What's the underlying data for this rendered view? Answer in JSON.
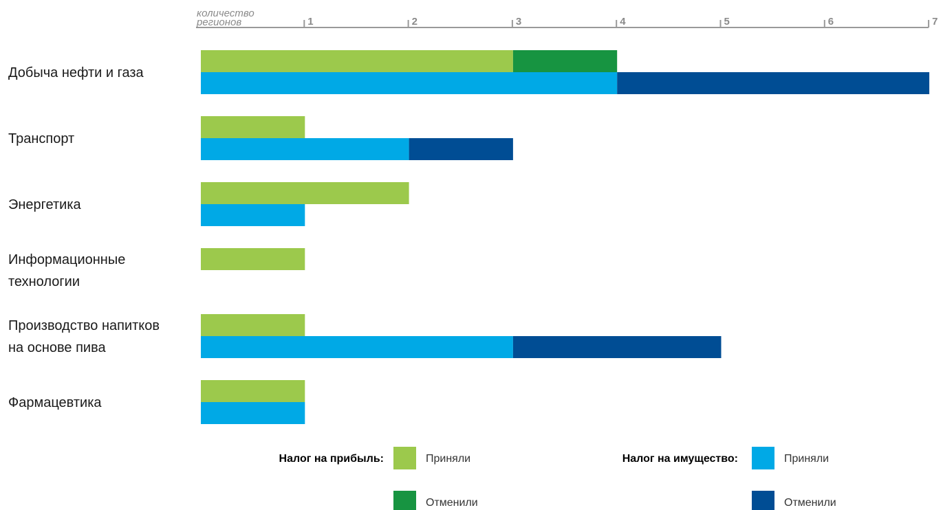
{
  "chart_data": {
    "type": "bar",
    "orientation": "horizontal",
    "stacked": true,
    "axis_title": [
      "количество",
      "регионов"
    ],
    "xlim": [
      0,
      7
    ],
    "ticks": [
      1,
      2,
      3,
      4,
      5,
      6,
      7
    ],
    "tick_labels": [
      "1",
      "2",
      "3",
      "4",
      "5",
      "6",
      "7"
    ],
    "categories": [
      [
        "Добыча нефти и газа"
      ],
      [
        "Транспорт"
      ],
      [
        "Энергетика"
      ],
      [
        "Информационные",
        "технологии"
      ],
      [
        "Производство напитков",
        "на основе пива"
      ],
      [
        "Фармацевтика"
      ]
    ],
    "groups": [
      {
        "name": "Налог на прибыль:",
        "series": [
          {
            "name": "Приняли",
            "color": "#9cc94c",
            "values": [
              3,
              1,
              2,
              1,
              1,
              1
            ]
          },
          {
            "name": "Отменили",
            "color": "#179441",
            "values": [
              1,
              0,
              0,
              0,
              0,
              0
            ]
          }
        ]
      },
      {
        "name": "Налог на имущество:",
        "series": [
          {
            "name": "Приняли",
            "color": "#00a9e6",
            "values": [
              4,
              2,
              1,
              0,
              3,
              1
            ]
          },
          {
            "name": "Отменили",
            "color": "#004d94",
            "values": [
              3,
              1,
              0,
              0,
              2,
              0
            ]
          }
        ]
      }
    ],
    "grid": false,
    "legend_position": "bottom"
  }
}
